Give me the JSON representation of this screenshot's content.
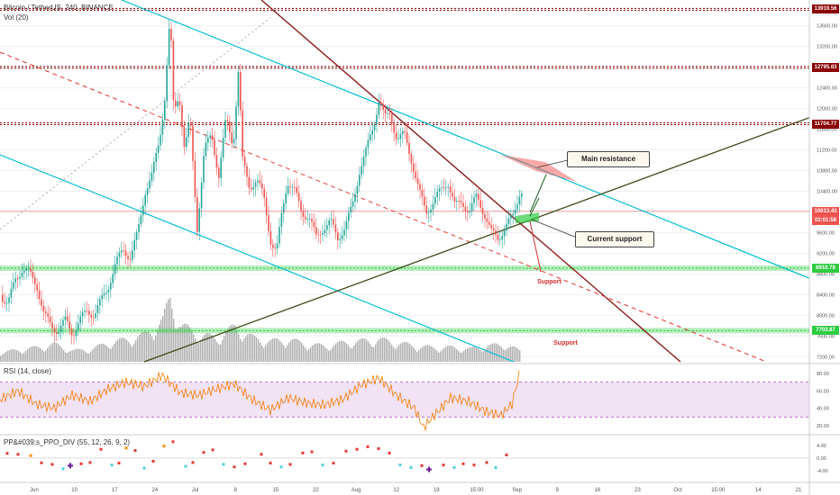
{
  "header": {
    "symbol_line": "Bitcoin / TetherUS, 240, BINANCE",
    "volume_label": "Vol (20)",
    "rsi_label": "RSI (14, close)",
    "ppo_label": "PP&#039;s_PPO_DIV (55, 12, 26, 9, 2)"
  },
  "colors": {
    "resistance": "#8b0000",
    "support": "#2ecc40",
    "channel": "#00bcd4",
    "trend_down": "#9b1c1c",
    "trend_up": "#3b4a1a",
    "candle_up": "#26a69a",
    "candle_down": "#ef5350",
    "rsi_line": "#f57c00",
    "rsi_band": "#e1bee7"
  },
  "chart_data": {
    "type": "candlestick",
    "y_axis": {
      "ticks": [
        "13600.00",
        "13200.00",
        "12800.00",
        "12400.00",
        "12000.00",
        "11600.00",
        "11200.00",
        "10800.00",
        "10400.00",
        "10000.00",
        "9600.00",
        "9200.00",
        "8800.00",
        "8400.00",
        "8000.00",
        "7600.00",
        "7200.00"
      ],
      "range": [
        7100,
        14100
      ]
    },
    "x_axis": {
      "ticks": [
        "Jun",
        "10",
        "17",
        "24",
        "Jul",
        "8",
        "15",
        "22",
        "Aug",
        "12",
        "19",
        "15:00",
        "Sep",
        "9",
        "16",
        "23",
        "Oct",
        "15:00",
        "14",
        "21"
      ]
    },
    "price_levels": [
      {
        "label": "13919.56",
        "value": 13919.56,
        "kind": "resistance"
      },
      {
        "label": "12795.63",
        "value": 12795.63,
        "kind": "resistance"
      },
      {
        "label": "11704.77",
        "value": 11704.77,
        "kind": "resistance"
      },
      {
        "label": "8910.78",
        "value": 8910.78,
        "kind": "support"
      },
      {
        "label": "7703.87",
        "value": 7703.87,
        "kind": "support"
      }
    ],
    "current_price": {
      "label": "10013.43",
      "timer": "02:01:58",
      "value": 10013.43
    },
    "price_path": [
      [
        0,
        8400
      ],
      [
        8,
        8200
      ],
      [
        16,
        8700
      ],
      [
        24,
        8900
      ],
      [
        32,
        8800
      ],
      [
        40,
        8600
      ],
      [
        48,
        8000
      ],
      [
        56,
        7800
      ],
      [
        64,
        7700
      ],
      [
        72,
        7900
      ],
      [
        80,
        7650
      ],
      [
        88,
        7900
      ],
      [
        96,
        8100
      ],
      [
        104,
        8000
      ],
      [
        112,
        8300
      ],
      [
        120,
        8600
      ],
      [
        128,
        9000
      ],
      [
        136,
        9300
      ],
      [
        144,
        9100
      ],
      [
        152,
        9600
      ],
      [
        160,
        10400
      ],
      [
        168,
        10700
      ],
      [
        176,
        11400
      ],
      [
        182,
        12200
      ],
      [
        188,
        13800
      ],
      [
        192,
        11900
      ],
      [
        198,
        12300
      ],
      [
        204,
        11200
      ],
      [
        210,
        11800
      ],
      [
        218,
        9700
      ],
      [
        226,
        11200
      ],
      [
        234,
        11500
      ],
      [
        242,
        10700
      ],
      [
        250,
        11800
      ],
      [
        258,
        11300
      ],
      [
        264,
        12800
      ],
      [
        268,
        11000
      ],
      [
        276,
        10500
      ],
      [
        284,
        10600
      ],
      [
        292,
        10300
      ],
      [
        300,
        9400
      ],
      [
        306,
        9200
      ],
      [
        312,
        10000
      ],
      [
        318,
        10600
      ],
      [
        326,
        10400
      ],
      [
        334,
        10000
      ],
      [
        342,
        9900
      ],
      [
        350,
        9500
      ],
      [
        358,
        9700
      ],
      [
        366,
        9800
      ],
      [
        374,
        9500
      ],
      [
        382,
        9700
      ],
      [
        390,
        10100
      ],
      [
        398,
        10800
      ],
      [
        406,
        11200
      ],
      [
        414,
        11700
      ],
      [
        420,
        12200
      ],
      [
        426,
        11800
      ],
      [
        432,
        11900
      ],
      [
        440,
        11400
      ],
      [
        448,
        11500
      ],
      [
        456,
        11000
      ],
      [
        464,
        10400
      ],
      [
        472,
        10000
      ],
      [
        480,
        10200
      ],
      [
        488,
        10400
      ],
      [
        496,
        10600
      ],
      [
        504,
        10100
      ],
      [
        512,
        10200
      ],
      [
        520,
        10000
      ],
      [
        528,
        10300
      ],
      [
        536,
        10000
      ],
      [
        544,
        9600
      ],
      [
        552,
        9500
      ],
      [
        560,
        9700
      ],
      [
        568,
        9900
      ],
      [
        576,
        10400
      ]
    ],
    "volume_path": [
      [
        0,
        12
      ],
      [
        20,
        15
      ],
      [
        40,
        18
      ],
      [
        60,
        22
      ],
      [
        80,
        14
      ],
      [
        100,
        16
      ],
      [
        120,
        24
      ],
      [
        140,
        28
      ],
      [
        160,
        34
      ],
      [
        180,
        52
      ],
      [
        188,
        80
      ],
      [
        200,
        46
      ],
      [
        220,
        34
      ],
      [
        240,
        30
      ],
      [
        260,
        44
      ],
      [
        280,
        30
      ],
      [
        300,
        26
      ],
      [
        320,
        28
      ],
      [
        340,
        22
      ],
      [
        360,
        20
      ],
      [
        380,
        24
      ],
      [
        400,
        26
      ],
      [
        420,
        28
      ],
      [
        440,
        24
      ],
      [
        460,
        20
      ],
      [
        480,
        18
      ],
      [
        500,
        18
      ],
      [
        520,
        16
      ],
      [
        540,
        20
      ],
      [
        560,
        22
      ],
      [
        576,
        14
      ]
    ],
    "rsi": {
      "band": [
        30,
        70
      ],
      "ticks": [
        "80.00",
        "60.00",
        "40.00",
        "20.00"
      ],
      "range": [
        15,
        85
      ],
      "path": [
        [
          0,
          50
        ],
        [
          20,
          60
        ],
        [
          40,
          45
        ],
        [
          60,
          40
        ],
        [
          80,
          55
        ],
        [
          100,
          48
        ],
        [
          120,
          62
        ],
        [
          140,
          70
        ],
        [
          160,
          65
        ],
        [
          180,
          78
        ],
        [
          188,
          70
        ],
        [
          200,
          58
        ],
        [
          220,
          55
        ],
        [
          240,
          62
        ],
        [
          260,
          68
        ],
        [
          280,
          50
        ],
        [
          300,
          38
        ],
        [
          320,
          52
        ],
        [
          340,
          46
        ],
        [
          360,
          44
        ],
        [
          380,
          50
        ],
        [
          400,
          66
        ],
        [
          420,
          75
        ],
        [
          440,
          55
        ],
        [
          460,
          40
        ],
        [
          470,
          18
        ],
        [
          480,
          30
        ],
        [
          500,
          52
        ],
        [
          520,
          48
        ],
        [
          540,
          36
        ],
        [
          556,
          32
        ],
        [
          568,
          45
        ],
        [
          576,
          78
        ]
      ]
    },
    "ppo": {
      "ticks": [
        "4.00",
        "0.00",
        "-4.00"
      ],
      "range": [
        -6,
        6
      ],
      "dots": [
        [
          8,
          1.5,
          "red"
        ],
        [
          20,
          1.2,
          "red"
        ],
        [
          34,
          0.8,
          "orange"
        ],
        [
          46,
          -1.5,
          "red"
        ],
        [
          58,
          -2.0,
          "red"
        ],
        [
          70,
          -3.4,
          "cyan"
        ],
        [
          78,
          -2.4,
          "purple"
        ],
        [
          90,
          -1.8,
          "red"
        ],
        [
          100,
          -1.4,
          "red"
        ],
        [
          112,
          2.8,
          "red"
        ],
        [
          124,
          -2.2,
          "cyan"
        ],
        [
          132,
          -1.6,
          "red"
        ],
        [
          140,
          3.2,
          "orange"
        ],
        [
          150,
          2.4,
          "red"
        ],
        [
          160,
          -3.2,
          "cyan"
        ],
        [
          170,
          -1.0,
          "red"
        ],
        [
          182,
          3.8,
          "orange"
        ],
        [
          192,
          5.2,
          "red"
        ],
        [
          206,
          -2.6,
          "cyan"
        ],
        [
          214,
          -1.4,
          "red"
        ],
        [
          226,
          1.8,
          "red"
        ],
        [
          236,
          2.6,
          "red"
        ],
        [
          248,
          -2.0,
          "cyan"
        ],
        [
          260,
          -2.8,
          "red"
        ],
        [
          272,
          -1.8,
          "red"
        ],
        [
          290,
          1.2,
          "red"
        ],
        [
          300,
          -1.6,
          "red"
        ],
        [
          312,
          -2.8,
          "cyan"
        ],
        [
          322,
          -2.0,
          "red"
        ],
        [
          336,
          1.6,
          "red"
        ],
        [
          346,
          2.0,
          "red"
        ],
        [
          358,
          -2.2,
          "cyan"
        ],
        [
          370,
          -1.6,
          "red"
        ],
        [
          384,
          2.2,
          "red"
        ],
        [
          396,
          2.8,
          "red"
        ],
        [
          408,
          3.6,
          "red"
        ],
        [
          420,
          3.0,
          "red"
        ],
        [
          432,
          1.6,
          "red"
        ],
        [
          444,
          -2.2,
          "cyan"
        ],
        [
          456,
          -3.0,
          "cyan"
        ],
        [
          468,
          -2.4,
          "red"
        ],
        [
          476,
          -3.6,
          "purple"
        ],
        [
          492,
          -2.2,
          "red"
        ],
        [
          504,
          -3.0,
          "cyan"
        ],
        [
          514,
          -1.8,
          "red"
        ],
        [
          526,
          -2.2,
          "red"
        ],
        [
          540,
          -1.4,
          "red"
        ],
        [
          550,
          -3.0,
          "cyan"
        ],
        [
          562,
          1.0,
          "red"
        ]
      ]
    },
    "annotations": {
      "main_resistance": "Main resistance",
      "current_support": "Current support",
      "support_1": "Support",
      "support_2": "Support"
    }
  }
}
